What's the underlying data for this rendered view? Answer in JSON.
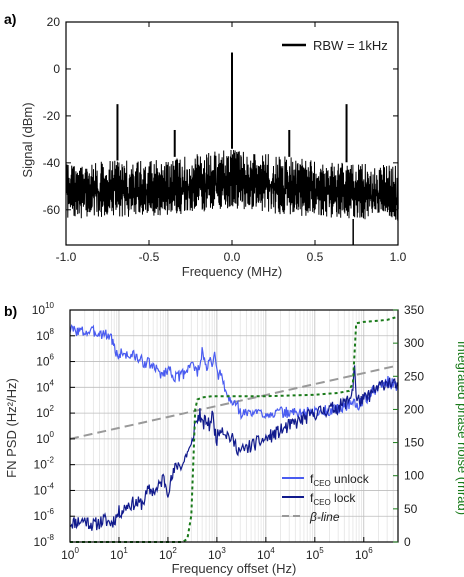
{
  "chart_data": [
    {
      "panel_label": "a)",
      "type": "line",
      "xlabel": "Frequency (MHz)",
      "ylabel": "Signal (dBm)",
      "xlim": [
        -1.0,
        1.0
      ],
      "ylim": [
        -75,
        20
      ],
      "xticks": [
        -1.0,
        -0.5,
        0.0,
        0.5,
        1.0
      ],
      "xtick_labels": [
        "-1.0",
        "-0.5",
        "0.0",
        "0.5",
        "1.0"
      ],
      "yticks": [
        20,
        0,
        -20,
        -40,
        -60
      ],
      "ytick_labels": [
        "20",
        "0",
        "-20",
        "-40",
        "-60"
      ],
      "grid": false,
      "legend_position": "top-right",
      "series": [
        {
          "name": "RBW = 1kHz",
          "color": "#000000",
          "noise_envelope": {
            "x": [
              -1.0,
              -0.75,
              -0.5,
              -0.3,
              -0.1,
              0.0,
              0.1,
              0.3,
              0.5,
              0.75,
              1.0
            ],
            "top": [
              -40,
              -39,
              -39,
              -37,
              -35,
              -34,
              -35,
              -37,
              -39,
              -40,
              -41
            ],
            "bottom": [
              -64,
              -63,
              -63,
              -62,
              -60,
              -60,
              -60,
              -62,
              -63,
              -64,
              -65
            ]
          },
          "peaks": [
            {
              "x": -0.69,
              "y": -15
            },
            {
              "x": -0.345,
              "y": -26
            },
            {
              "x": 0.0,
              "y": 7
            },
            {
              "x": 0.345,
              "y": -26
            },
            {
              "x": 0.69,
              "y": -15
            }
          ],
          "dips": [
            {
              "x": 0.73,
              "y": -75
            }
          ]
        }
      ]
    },
    {
      "panel_label": "b)",
      "type": "line",
      "xlabel": "Frequency offset (Hz)",
      "ylabel": "FN PSD (Hz²/Hz)",
      "y2label": "Integrated phase noise (mrad)",
      "xscale": "log",
      "yscale": "log",
      "xlim": [
        1,
        5000000
      ],
      "ylim": [
        1e-08,
        10000000000.0
      ],
      "y2lim": [
        0,
        350
      ],
      "xtick_exponents": [
        0,
        1,
        2,
        3,
        4,
        5,
        6
      ],
      "ytick_exponents": [
        -8,
        -6,
        -4,
        -2,
        0,
        2,
        4,
        6,
        8,
        10
      ],
      "y2ticks": [
        0,
        50,
        100,
        150,
        200,
        250,
        300,
        350
      ],
      "grid": true,
      "legend_position": "bottom-right",
      "legend": {
        "unlock_base": "f",
        "unlock_sub": "CEO",
        "unlock_rest": " unlock",
        "lock_base": "f",
        "lock_sub": "CEO",
        "lock_rest": " lock",
        "beta": "β-line"
      },
      "series": [
        {
          "name": "fCEO unlock",
          "color": "#4a5cf0",
          "x": [
            1,
            2,
            3,
            5,
            7,
            9,
            12,
            15,
            20,
            30,
            40,
            60,
            80,
            100,
            150,
            200,
            250,
            300,
            350,
            400,
            450,
            500,
            600,
            700,
            800,
            900,
            1000,
            1200,
            1500,
            2000,
            2500,
            3000,
            4000,
            10000,
            100000,
            300000,
            500000,
            600000,
            700000,
            1000000,
            2000000,
            3000000,
            5000000
          ],
          "y": [
            300000000.0,
            200000000.0,
            200000000.0,
            150000000.0,
            80000000.0,
            3000000.0,
            5000000.0,
            3000000.0,
            3000000.0,
            1000000.0,
            800000.0,
            200000.0,
            100000.0,
            300000.0,
            50000.0,
            100000.0,
            300000.0,
            1000000.0,
            300000.0,
            100000.0,
            1000000.0,
            5000000.0,
            300000.0,
            1000000.0,
            500000.0,
            3000000.0,
            100000.0,
            100000.0,
            5000.0,
            500.0,
            800.0,
            100.0,
            100.0,
            100.0,
            120.0,
            200.0,
            500.0,
            1000.0,
            300.0,
            1000.0,
            10000.0,
            30000.0,
            10000.0
          ]
        },
        {
          "name": "fCEO lock",
          "color": "#111a8c",
          "x": [
            1,
            2,
            3,
            5,
            7,
            9,
            10,
            12,
            15,
            20,
            30,
            40,
            60,
            80,
            100,
            150,
            200,
            250,
            300,
            350,
            400,
            450,
            500,
            600,
            700,
            800,
            900,
            1000,
            1200,
            1500,
            2000,
            3000,
            5000,
            10000,
            30000,
            100000,
            300000,
            500000,
            600000,
            650000,
            700000,
            1000000,
            2000000,
            3000000,
            5000000
          ],
          "y": [
            3e-07,
            5e-07,
            2e-07,
            5e-07,
            3e-07,
            1e-06,
            2e-06,
            3e-06,
            8e-06,
            1e-05,
            1e-05,
            0.0001,
            0.0001,
            0.001,
            0.0001,
            0.01,
            0.01,
            0.1,
            0.2,
            10.0,
            30.0,
            100.0,
            10.0,
            30.0,
            10.0,
            100.0,
            5.0,
            1.0,
            10.0,
            3.0,
            1.0,
            0.1,
            0.3,
            1.0,
            10.0,
            100.0,
            300.0,
            1000.0,
            10000.0,
            1000000.0,
            1000.0,
            1000.0,
            10000.0,
            30000.0,
            10000.0
          ]
        },
        {
          "name": "β-line",
          "color": "#999999",
          "x": [
            1,
            5000000
          ],
          "y": [
            1.0,
            500000.0
          ]
        },
        {
          "name": "Integrated phase noise",
          "axis": "right",
          "color": "#1a7a1a",
          "x": [
            1,
            200,
            250,
            300,
            330,
            360,
            400,
            500,
            800,
            1000,
            2000,
            5000,
            10000,
            100000,
            300000,
            500000,
            600000,
            700000,
            1000000,
            3000000,
            5000000
          ],
          "y": [
            0,
            0,
            5,
            40,
            120,
            200,
            215,
            218,
            220,
            220,
            220,
            220,
            220,
            222,
            225,
            228,
            240,
            330,
            332,
            335,
            340
          ]
        }
      ]
    }
  ]
}
